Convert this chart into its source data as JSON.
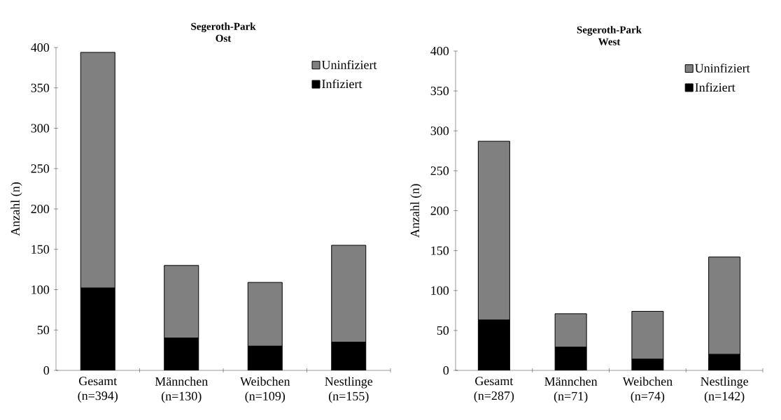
{
  "chart_data": [
    {
      "type": "bar",
      "title": "Segeroth-Park",
      "subtitle": "Ost",
      "ylabel": "Anzahl (n)",
      "stacked": true,
      "legend": "top right",
      "categories": [
        "Gesamt (n=394)",
        "Männchen (n=130)",
        "Weibchen (n=109)",
        "Nestlinge (n=155)"
      ],
      "series": [
        {
          "name": "Infiziert",
          "color": "#000000",
          "values": [
            102,
            40,
            30,
            35
          ]
        },
        {
          "name": "Uninfiziert",
          "color": "#808080",
          "values": [
            292,
            90,
            79,
            120
          ]
        }
      ],
      "ylim": [
        0,
        400
      ],
      "yticks": [
        0,
        50,
        100,
        150,
        200,
        250,
        300,
        350,
        400
      ]
    },
    {
      "type": "bar",
      "title": "Segeroth-Park",
      "subtitle": "West",
      "ylabel": "Anzahl (n)",
      "stacked": true,
      "legend": "top right",
      "categories": [
        "Gesamt (n=287)",
        "Männchen (n=71)",
        "Weibchen (n=74)",
        "Nestlinge (n=142)"
      ],
      "series": [
        {
          "name": "Infiziert",
          "color": "#000000",
          "values": [
            63,
            29,
            14,
            20
          ]
        },
        {
          "name": "Uninfiziert",
          "color": "#808080",
          "values": [
            224,
            42,
            60,
            122
          ]
        }
      ],
      "ylim": [
        0,
        400
      ],
      "yticks": [
        0,
        50,
        100,
        150,
        200,
        250,
        300,
        350,
        400
      ]
    }
  ]
}
